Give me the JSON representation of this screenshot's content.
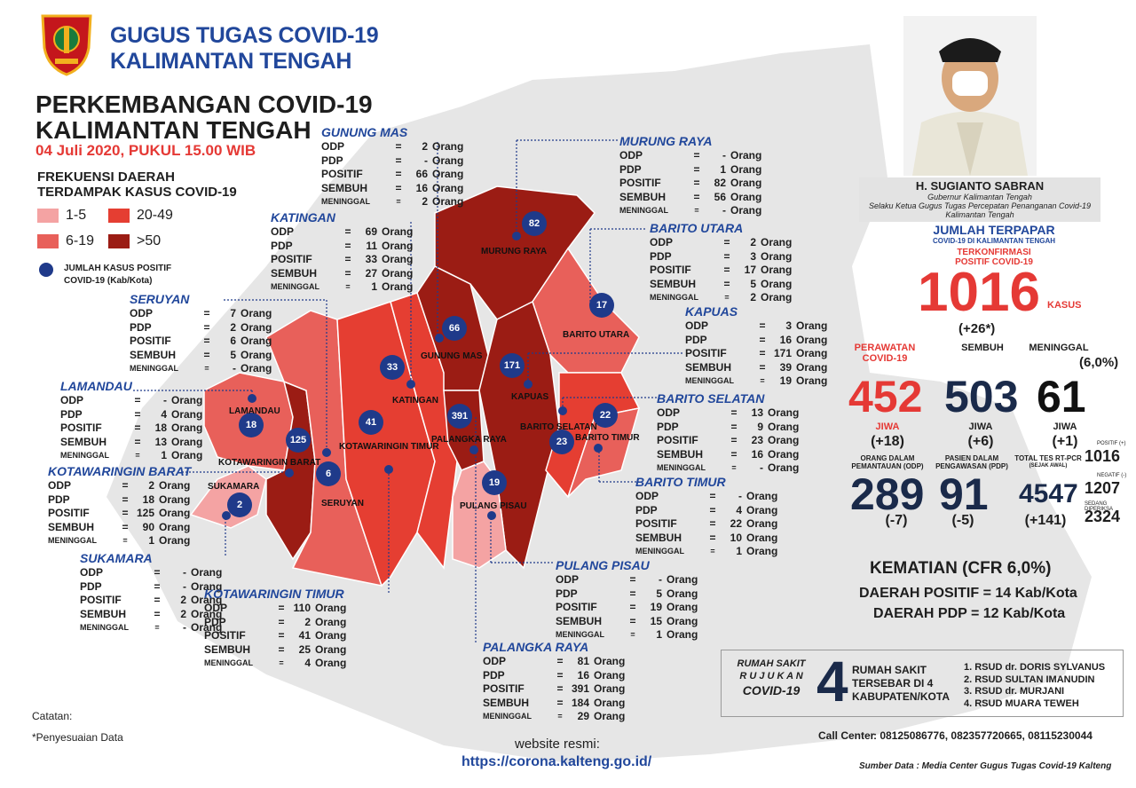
{
  "header": {
    "org_line1": "GUGUS TUGAS COVID-19",
    "org_line2": "KALIMANTAN TENGAH"
  },
  "title": {
    "line1": "PERKEMBANGAN COVID-19",
    "line2": "KALIMANTAN TENGAH",
    "date": "04 Juli 2020, PUKUL 15.00 WIB"
  },
  "legend": {
    "heading1": "FREKUENSI DAERAH",
    "heading2": "TERDAMPAK KASUS COVID-19",
    "items": [
      {
        "label": "1-5",
        "color": "#f4a3a3"
      },
      {
        "label": "20-49",
        "color": "#e53e32"
      },
      {
        "label": "6-19",
        "color": "#e8605a"
      },
      {
        "label": ">50",
        "color": "#9b1c14"
      }
    ],
    "dot1": "JUMLAH KASUS POSITIF",
    "dot2": "COVID-19 (Kab/Kota)"
  },
  "labels": {
    "odp": "ODP",
    "pdp": "PDP",
    "positif": "POSITIF",
    "sembuh": "SEMBUH",
    "meninggal": "MENINGGAL",
    "eq": "=",
    "unit": "Orang"
  },
  "regions": [
    {
      "name": "GUNUNG MAS",
      "odp": "2",
      "pdp": "-",
      "positif": "66",
      "sembuh": "16",
      "meninggal": "2",
      "marker": "66",
      "map_label": "GUNUNG MAS"
    },
    {
      "name": "MURUNG RAYA",
      "odp": "-",
      "pdp": "1",
      "positif": "82",
      "sembuh": "56",
      "meninggal": "-",
      "marker": "82",
      "map_label": "MURUNG RAYA"
    },
    {
      "name": "KATINGAN",
      "odp": "69",
      "pdp": "11",
      "positif": "33",
      "sembuh": "27",
      "meninggal": "1",
      "marker": "33",
      "map_label": "KATINGAN"
    },
    {
      "name": "BARITO UTARA",
      "odp": "2",
      "pdp": "3",
      "positif": "17",
      "sembuh": "5",
      "meninggal": "2",
      "marker": "17",
      "map_label": "BARITO UTARA"
    },
    {
      "name": "SERUYAN",
      "odp": "7",
      "pdp": "2",
      "positif": "6",
      "sembuh": "5",
      "meninggal": "-",
      "marker": "6",
      "map_label": "SERUYAN"
    },
    {
      "name": "KAPUAS",
      "odp": "3",
      "pdp": "16",
      "positif": "171",
      "sembuh": "39",
      "meninggal": "19",
      "marker": "171",
      "map_label": "KAPUAS"
    },
    {
      "name": "LAMANDAU",
      "odp": "-",
      "pdp": "4",
      "positif": "18",
      "sembuh": "13",
      "meninggal": "1",
      "marker": "18",
      "map_label": "LAMANDAU"
    },
    {
      "name": "BARITO SELATAN",
      "odp": "13",
      "pdp": "9",
      "positif": "23",
      "sembuh": "16",
      "meninggal": "-",
      "marker": "23",
      "map_label": "BARITO SELATAN"
    },
    {
      "name": "KOTAWARINGIN BARAT",
      "odp": "2",
      "pdp": "18",
      "positif": "125",
      "sembuh": "90",
      "meninggal": "1",
      "marker": "125",
      "map_label": "KOTAWARINGIN BARAT"
    },
    {
      "name": "BARITO TIMUR",
      "odp": "-",
      "pdp": "4",
      "positif": "22",
      "sembuh": "10",
      "meninggal": "1",
      "marker": "22",
      "map_label": "BARITO TIMUR"
    },
    {
      "name": "SUKAMARA",
      "odp": "-",
      "pdp": "-",
      "positif": "2",
      "sembuh": "2",
      "meninggal": "-",
      "marker": "2",
      "map_label": "SUKAMARA"
    },
    {
      "name": "PULANG PISAU",
      "odp": "-",
      "pdp": "5",
      "positif": "19",
      "sembuh": "15",
      "meninggal": "1",
      "marker": "19",
      "map_label": "PULANG PISAU"
    },
    {
      "name": "KOTAWARINGIN TIMUR",
      "odp": "110",
      "pdp": "2",
      "positif": "41",
      "sembuh": "25",
      "meninggal": "4",
      "marker": "41",
      "map_label": "KOTAWARINGIN TIMUR"
    },
    {
      "name": "PALANGKA RAYA",
      "odp": "81",
      "pdp": "16",
      "positif": "391",
      "sembuh": "184",
      "meninggal": "29",
      "marker": "391",
      "map_label": "PALANGKA RAYA"
    }
  ],
  "governor": {
    "name": "H. SUGIANTO SABRAN",
    "role1": "Gubernur Kalimantan Tengah",
    "role2": "Selaku Ketua Gugus Tugas Percepatan Penanganan Covid-19",
    "role3": "Kalimantan Tengah"
  },
  "stats": {
    "terpapar_title": "JUMLAH TERPAPAR",
    "terpapar_sub": "COVID-19 DI KALIMANTAN TENGAH",
    "terkonfirmasi1": "TERKONFIRMASI",
    "terkonfirmasi2": "POSITIF COVID-19",
    "total": "1016",
    "kasus": "KASUS",
    "delta": "(+26*)",
    "perawatan1": "PERAWATAN",
    "perawatan2": "COVID-19",
    "sembuh_label": "SEMBUH",
    "meninggal_label": "MENINGGAL",
    "meninggal_pct": "(6,0%)",
    "perawatan": "452",
    "sembuh": "503",
    "meninggal": "61",
    "jiwa": "JIWA",
    "perawatan_delta": "(+18)",
    "sembuh_delta": "(+6)",
    "meninggal_delta": "(+1)",
    "odp_label1": "ORANG DALAM",
    "odp_label2": "PEMANTAUAN (ODP)",
    "pdp_label1": "PASIEN DALAM",
    "pdp_label2": "PENGAWASAN (PDP)",
    "tes_label1": "TOTAL TES RT-PCR",
    "tes_label2": "(SEJAK AWAL)",
    "odp": "289",
    "odp_delta": "(-7)",
    "pdp": "91",
    "pdp_delta": "(-5)",
    "tes": "4547",
    "tes_delta": "(+141)",
    "positif_label": "POSITIF (+)",
    "positif_val": "1016",
    "negatif_label": "NEGATIF (-)",
    "negatif_val": "1207",
    "diperiksa_label": "SEDANG DIPERIKSA",
    "diperiksa_val": "2324"
  },
  "kematian": {
    "line1": "KEMATIAN (CFR 6,0%)",
    "line2": "DAERAH POSITIF = 14 Kab/Kota",
    "line3": "DAERAH PDP = 12 Kab/Kota"
  },
  "hospitals": {
    "box1": "RUMAH SAKIT",
    "box2": "R U J U K A N",
    "box3": "COVID-19",
    "count": "4",
    "desc1": "RUMAH SAKIT",
    "desc2": "TERSEBAR DI 4",
    "desc3": "KABUPATEN/KOTA",
    "list": [
      "1. RSUD dr. DORIS SYLVANUS",
      "2. RSUD SULTAN IMANUDIN",
      "3. RSUD dr. MURJANI",
      "4. RSUD MUARA TEWEH"
    ]
  },
  "footer": {
    "catatan": "Catatan:",
    "note": "*Penyesuaian Data",
    "website_label": "website resmi:",
    "website": "https://corona.kalteng.go.id/",
    "callcenter_label": "Call Center",
    "callcenter": ": 08125086776, 082357720665, 08115230044",
    "source": "Sumber Data : Media Center Gugus Tugas Covid-19 Kalteng"
  }
}
